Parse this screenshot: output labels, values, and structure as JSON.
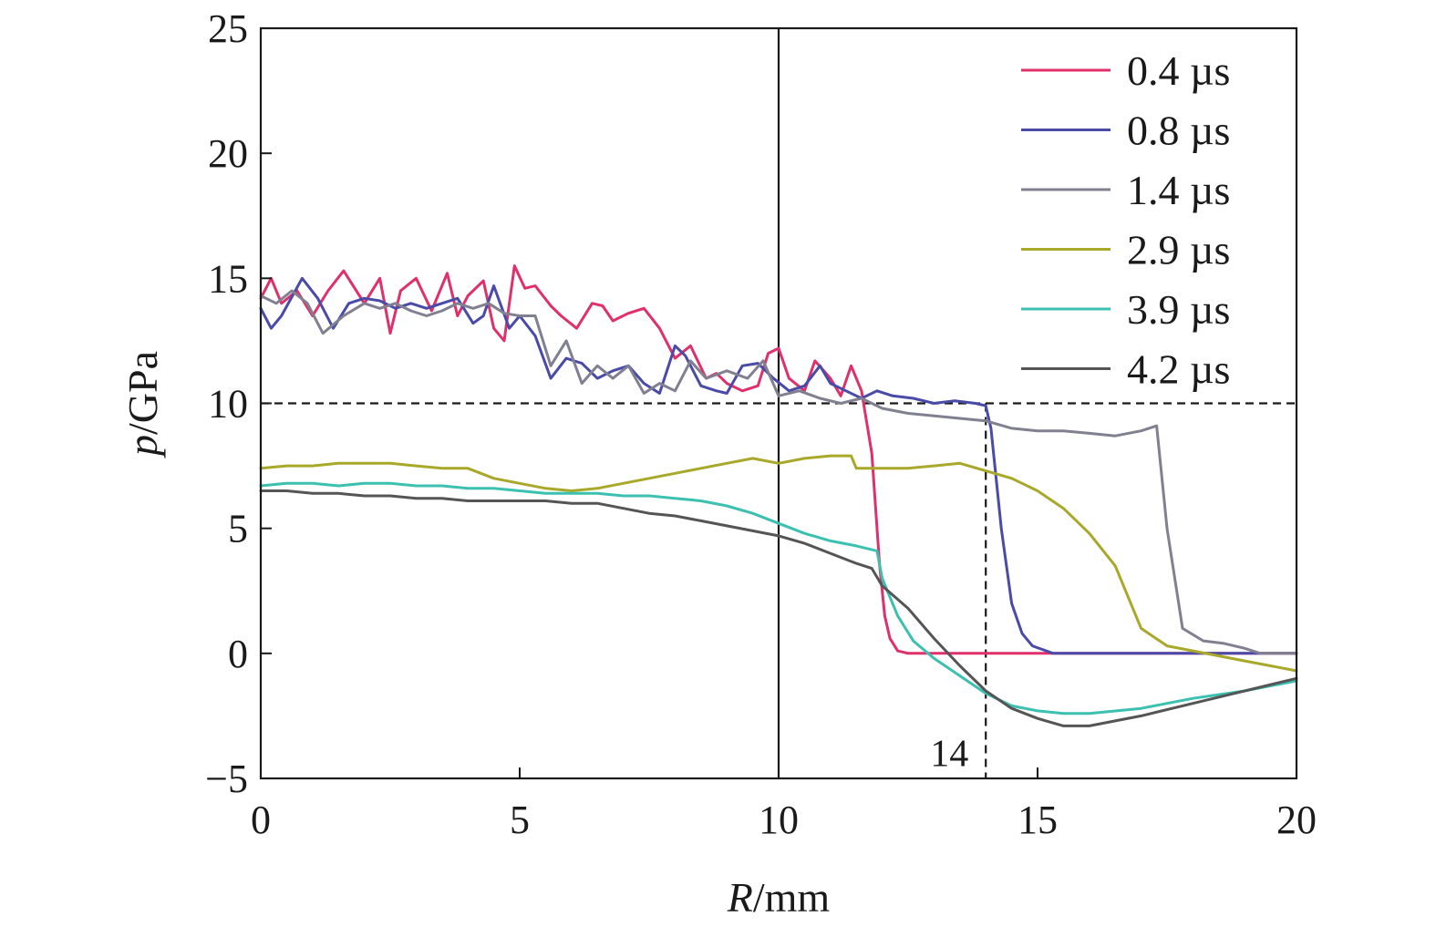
{
  "chart_data": {
    "type": "line",
    "xlabel_var": "R",
    "xlabel_unit": "/mm",
    "ylabel_var": "p",
    "ylabel_unit": "/GPa",
    "xlim": [
      0,
      20
    ],
    "ylim": [
      -5,
      25
    ],
    "x_ticks": [
      0,
      5,
      10,
      15,
      20
    ],
    "y_ticks": [
      -5,
      0,
      5,
      10,
      15,
      20,
      25
    ],
    "x_tick_labels": [
      "0",
      "5",
      "10",
      "15",
      "20"
    ],
    "y_tick_labels": [
      "−5",
      "0",
      "5",
      "10",
      "15",
      "20",
      "25"
    ],
    "grid": false,
    "legend_position": "top-right",
    "reference_lines": {
      "vertical_solid_x": 10,
      "horizontal_dashed_y": 10,
      "vertical_dashed_x": 14
    },
    "annotation": {
      "text": "14",
      "x": 14,
      "y": -4
    },
    "series": [
      {
        "name": "0.4 µs",
        "color": "#e0306a",
        "x": [
          0,
          0.2,
          0.4,
          0.7,
          1.0,
          1.3,
          1.6,
          2.0,
          2.3,
          2.5,
          2.7,
          3.0,
          3.3,
          3.6,
          3.8,
          4.0,
          4.3,
          4.5,
          4.7,
          4.9,
          5.1,
          5.3,
          5.6,
          5.8,
          6.1,
          6.4,
          6.6,
          6.8,
          7.1,
          7.4,
          7.7,
          8.0,
          8.3,
          8.6,
          8.8,
          9.0,
          9.3,
          9.6,
          9.8,
          10.0,
          10.2,
          10.5,
          10.7,
          11.0,
          11.2,
          11.4,
          11.6,
          11.8,
          11.95,
          12.05,
          12.15,
          12.3,
          12.5,
          13.0,
          15.0,
          18.0,
          20.0
        ],
        "y": [
          14.2,
          15.0,
          14.0,
          14.5,
          13.5,
          14.5,
          15.3,
          14.0,
          15.0,
          12.8,
          14.5,
          15.0,
          13.7,
          15.2,
          13.5,
          14.3,
          14.9,
          13.0,
          12.5,
          15.5,
          14.6,
          14.7,
          13.9,
          13.5,
          13.0,
          14.0,
          13.9,
          13.3,
          13.6,
          13.8,
          13.0,
          11.8,
          12.3,
          11.0,
          11.2,
          10.8,
          10.5,
          10.7,
          12.0,
          12.2,
          11.0,
          10.5,
          11.7,
          11.0,
          10.3,
          11.5,
          10.5,
          8.0,
          3.5,
          1.5,
          0.6,
          0.1,
          0.0,
          0.0,
          0.0,
          0.0,
          0.0
        ]
      },
      {
        "name": "0.8 µs",
        "color": "#4a4aa8",
        "x": [
          0,
          0.2,
          0.4,
          0.8,
          1.1,
          1.4,
          1.7,
          2.0,
          2.3,
          2.6,
          2.9,
          3.2,
          3.5,
          3.8,
          4.1,
          4.3,
          4.5,
          4.8,
          5.0,
          5.3,
          5.6,
          5.9,
          6.2,
          6.5,
          6.8,
          7.1,
          7.4,
          7.7,
          8.0,
          8.2,
          8.5,
          8.8,
          9.0,
          9.3,
          9.6,
          9.9,
          10.2,
          10.5,
          10.8,
          11.0,
          11.3,
          11.6,
          11.9,
          12.2,
          12.6,
          13.0,
          13.4,
          13.8,
          14.0,
          14.1,
          14.3,
          14.5,
          14.7,
          14.9,
          15.3,
          17.0,
          20.0
        ],
        "y": [
          13.8,
          13.0,
          13.5,
          15.0,
          14.2,
          13.0,
          14.0,
          14.2,
          14.1,
          13.8,
          14.0,
          13.8,
          14.0,
          14.2,
          13.2,
          13.5,
          14.7,
          13.0,
          13.5,
          12.7,
          11.0,
          11.8,
          11.6,
          11.0,
          11.3,
          11.5,
          10.8,
          10.4,
          12.3,
          11.9,
          10.7,
          10.5,
          10.4,
          11.5,
          11.6,
          11.0,
          10.5,
          10.7,
          11.5,
          10.8,
          10.5,
          10.2,
          10.5,
          10.3,
          10.2,
          10.0,
          10.1,
          10.0,
          9.9,
          9.0,
          5.0,
          2.0,
          0.8,
          0.3,
          0.0,
          0.0,
          0.0
        ]
      },
      {
        "name": "1.4 µs",
        "color": "#808090",
        "x": [
          0,
          0.3,
          0.6,
          0.9,
          1.2,
          1.6,
          2.0,
          2.3,
          2.6,
          2.9,
          3.2,
          3.5,
          3.8,
          4.1,
          4.4,
          4.7,
          5.0,
          5.3,
          5.6,
          5.9,
          6.2,
          6.5,
          6.8,
          7.1,
          7.4,
          7.7,
          8.0,
          8.3,
          8.6,
          9.0,
          9.4,
          9.7,
          10.0,
          10.4,
          10.8,
          11.2,
          11.6,
          12.0,
          12.5,
          13.0,
          13.5,
          14.0,
          14.5,
          15.0,
          15.5,
          16.0,
          16.5,
          17.0,
          17.3,
          17.5,
          17.8,
          18.2,
          18.6,
          19.0,
          19.3,
          20.0
        ],
        "y": [
          14.3,
          14.0,
          14.5,
          14.0,
          12.8,
          13.5,
          14.0,
          13.8,
          14.0,
          13.7,
          13.5,
          13.7,
          14.0,
          13.8,
          14.0,
          13.6,
          13.5,
          13.5,
          11.5,
          12.5,
          10.8,
          11.5,
          11.0,
          11.5,
          10.4,
          10.8,
          10.5,
          11.7,
          11.0,
          11.3,
          11.0,
          11.7,
          10.3,
          10.5,
          10.2,
          10.0,
          10.2,
          9.8,
          9.6,
          9.5,
          9.4,
          9.3,
          9.0,
          8.9,
          8.9,
          8.8,
          8.7,
          8.9,
          9.1,
          5.0,
          1.0,
          0.5,
          0.4,
          0.2,
          0.0,
          0.0
        ]
      },
      {
        "name": "2.9 µs",
        "color": "#a8a82a",
        "x": [
          0,
          0.5,
          1.0,
          1.5,
          2.0,
          2.5,
          3.0,
          3.5,
          4.0,
          4.5,
          5.0,
          5.5,
          6.0,
          6.5,
          7.0,
          7.5,
          8.0,
          8.5,
          9.0,
          9.5,
          10.0,
          10.5,
          11.0,
          11.4,
          11.5,
          12.0,
          12.5,
          13.0,
          13.5,
          14.0,
          14.5,
          15.0,
          15.5,
          16.0,
          16.5,
          17.0,
          17.5,
          18.0,
          18.5,
          19.0,
          19.5,
          20.0
        ],
        "y": [
          7.4,
          7.5,
          7.5,
          7.6,
          7.6,
          7.6,
          7.5,
          7.4,
          7.4,
          7.0,
          6.8,
          6.6,
          6.5,
          6.6,
          6.8,
          7.0,
          7.2,
          7.4,
          7.6,
          7.8,
          7.6,
          7.8,
          7.9,
          7.9,
          7.4,
          7.4,
          7.4,
          7.5,
          7.6,
          7.3,
          7.0,
          6.5,
          5.8,
          4.8,
          3.5,
          1.0,
          0.3,
          0.1,
          -0.1,
          -0.3,
          -0.5,
          -0.7
        ]
      },
      {
        "name": "3.9 µs",
        "color": "#3cc0b0",
        "x": [
          0,
          0.5,
          1.0,
          1.5,
          2.0,
          2.5,
          3.0,
          3.5,
          4.0,
          4.5,
          5.0,
          5.5,
          6.0,
          6.5,
          7.0,
          7.5,
          8.0,
          8.5,
          9.0,
          9.5,
          10.0,
          10.5,
          11.0,
          11.5,
          11.9,
          12.0,
          12.3,
          12.6,
          13.0,
          13.5,
          14.0,
          14.5,
          15.0,
          15.5,
          16.0,
          17.0,
          18.0,
          19.0,
          20.0
        ],
        "y": [
          6.7,
          6.8,
          6.8,
          6.7,
          6.8,
          6.8,
          6.7,
          6.7,
          6.6,
          6.6,
          6.5,
          6.4,
          6.4,
          6.4,
          6.3,
          6.3,
          6.2,
          6.1,
          5.9,
          5.6,
          5.2,
          4.8,
          4.5,
          4.3,
          4.1,
          3.0,
          1.5,
          0.5,
          -0.2,
          -0.9,
          -1.6,
          -2.1,
          -2.3,
          -2.4,
          -2.4,
          -2.2,
          -1.8,
          -1.5,
          -1.1
        ]
      },
      {
        "name": "4.2 µs",
        "color": "#555555",
        "x": [
          0,
          0.5,
          1.0,
          1.5,
          2.0,
          2.5,
          3.0,
          3.5,
          4.0,
          4.5,
          5.0,
          5.5,
          6.0,
          6.5,
          7.0,
          7.5,
          8.0,
          8.5,
          9.0,
          9.5,
          10.0,
          10.5,
          11.0,
          11.5,
          11.8,
          12.0,
          12.5,
          13.0,
          13.5,
          14.0,
          14.5,
          15.0,
          15.5,
          16.0,
          17.0,
          18.0,
          19.0,
          20.0
        ],
        "y": [
          6.5,
          6.5,
          6.4,
          6.4,
          6.3,
          6.3,
          6.2,
          6.2,
          6.1,
          6.1,
          6.1,
          6.1,
          6.0,
          6.0,
          5.8,
          5.6,
          5.5,
          5.3,
          5.1,
          4.9,
          4.7,
          4.4,
          4.0,
          3.6,
          3.4,
          2.7,
          1.8,
          0.6,
          -0.5,
          -1.5,
          -2.2,
          -2.6,
          -2.9,
          -2.9,
          -2.5,
          -2.0,
          -1.5,
          -1.0
        ]
      }
    ]
  }
}
